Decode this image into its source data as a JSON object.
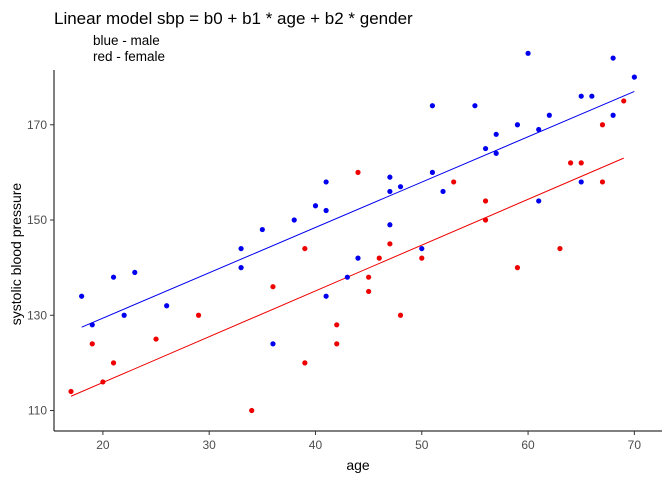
{
  "chart_data": {
    "type": "scatter",
    "title": "Linear model sbp = b0 + b1 * age + b2 * gender",
    "subtitle_lines": [
      "blue - male",
      "red - female"
    ],
    "xlabel": "age",
    "ylabel": "systolic blood pressure",
    "xlim": [
      15.4,
      72.6
    ],
    "ylim": [
      105.7,
      181.5
    ],
    "x_ticks": [
      20,
      30,
      40,
      50,
      60,
      70
    ],
    "y_ticks": [
      110,
      130,
      150,
      170
    ],
    "grid": false,
    "series": [
      {
        "color": "#0000ee",
        "points": [
          {
            "x": 18,
            "y": 134
          },
          {
            "x": 19,
            "y": 128
          },
          {
            "x": 21,
            "y": 138
          },
          {
            "x": 22,
            "y": 130
          },
          {
            "x": 23,
            "y": 139
          },
          {
            "x": 26,
            "y": 132
          },
          {
            "x": 33,
            "y": 144
          },
          {
            "x": 33,
            "y": 140
          },
          {
            "x": 35,
            "y": 148
          },
          {
            "x": 36,
            "y": 124
          },
          {
            "x": 38,
            "y": 150
          },
          {
            "x": 40,
            "y": 153
          },
          {
            "x": 41,
            "y": 158
          },
          {
            "x": 41,
            "y": 152
          },
          {
            "x": 41,
            "y": 134
          },
          {
            "x": 43,
            "y": 138
          },
          {
            "x": 44,
            "y": 142
          },
          {
            "x": 47,
            "y": 159
          },
          {
            "x": 47,
            "y": 156
          },
          {
            "x": 47,
            "y": 149
          },
          {
            "x": 48,
            "y": 157
          },
          {
            "x": 50,
            "y": 144
          },
          {
            "x": 51,
            "y": 174
          },
          {
            "x": 51,
            "y": 160
          },
          {
            "x": 52,
            "y": 156
          },
          {
            "x": 55,
            "y": 174
          },
          {
            "x": 56,
            "y": 165
          },
          {
            "x": 57,
            "y": 168
          },
          {
            "x": 57,
            "y": 164
          },
          {
            "x": 59,
            "y": 170
          },
          {
            "x": 60,
            "y": 185
          },
          {
            "x": 61,
            "y": 169
          },
          {
            "x": 61,
            "y": 154
          },
          {
            "x": 62,
            "y": 172
          },
          {
            "x": 65,
            "y": 176
          },
          {
            "x": 65,
            "y": 158
          },
          {
            "x": 66,
            "y": 176
          },
          {
            "x": 68,
            "y": 184
          },
          {
            "x": 68,
            "y": 172
          },
          {
            "x": 70,
            "y": 180
          }
        ],
        "fit_line": {
          "x": [
            18,
            70
          ],
          "y": [
            127.5,
            177
          ]
        }
      },
      {
        "color": "#ee0000",
        "points": [
          {
            "x": 17,
            "y": 114
          },
          {
            "x": 19,
            "y": 124
          },
          {
            "x": 20,
            "y": 116
          },
          {
            "x": 21,
            "y": 120
          },
          {
            "x": 25,
            "y": 125
          },
          {
            "x": 29,
            "y": 130
          },
          {
            "x": 34,
            "y": 110
          },
          {
            "x": 36,
            "y": 136
          },
          {
            "x": 39,
            "y": 144
          },
          {
            "x": 39,
            "y": 120
          },
          {
            "x": 42,
            "y": 128
          },
          {
            "x": 42,
            "y": 124
          },
          {
            "x": 44,
            "y": 160
          },
          {
            "x": 45,
            "y": 138
          },
          {
            "x": 45,
            "y": 135
          },
          {
            "x": 46,
            "y": 142
          },
          {
            "x": 47,
            "y": 145
          },
          {
            "x": 48,
            "y": 130
          },
          {
            "x": 50,
            "y": 142
          },
          {
            "x": 53,
            "y": 158
          },
          {
            "x": 56,
            "y": 154
          },
          {
            "x": 56,
            "y": 150
          },
          {
            "x": 59,
            "y": 140
          },
          {
            "x": 63,
            "y": 144
          },
          {
            "x": 64,
            "y": 162
          },
          {
            "x": 65,
            "y": 162
          },
          {
            "x": 67,
            "y": 170
          },
          {
            "x": 67,
            "y": 158
          },
          {
            "x": 69,
            "y": 175
          }
        ],
        "fit_line": {
          "x": [
            17,
            69
          ],
          "y": [
            113,
            163
          ]
        }
      }
    ]
  }
}
